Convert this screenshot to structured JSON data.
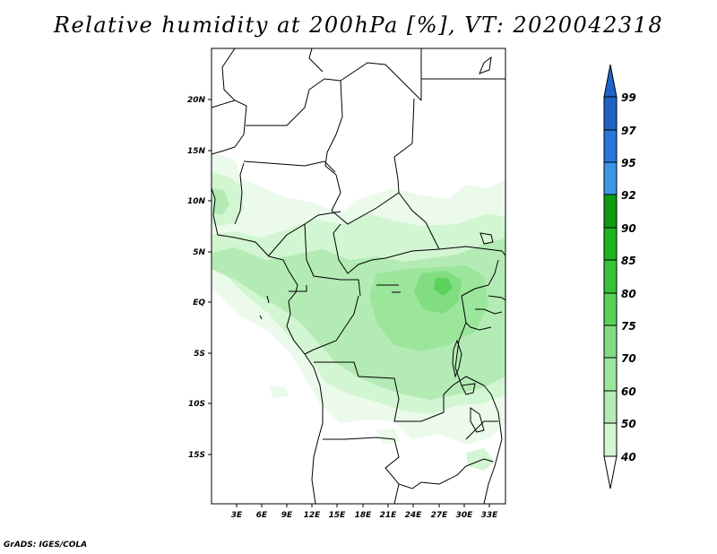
{
  "title": "Relative humidity at 200hPa [%], VT: 2020042318",
  "credit": "GrADS: IGES/COLA",
  "lat_labels": [
    "20N",
    "15N",
    "10N",
    "5N",
    "EQ",
    "5S",
    "10S",
    "15S"
  ],
  "lon_labels": [
    "3E",
    "6E",
    "9E",
    "12E",
    "15E",
    "18E",
    "21E",
    "24E",
    "27E",
    "30E",
    "33E"
  ],
  "colorbar": {
    "levels": [
      "40",
      "50",
      "60",
      "70",
      "75",
      "80",
      "85",
      "90",
      "92",
      "95",
      "97",
      "99"
    ],
    "colors": [
      "#ebfaeb",
      "#d2f5d2",
      "#b4ebb4",
      "#9be69b",
      "#82dc82",
      "#5ad25a",
      "#37c337",
      "#1eb41e",
      "#0f9b0f",
      "#3c96e6",
      "#2878dc",
      "#1e64c8"
    ]
  }
}
